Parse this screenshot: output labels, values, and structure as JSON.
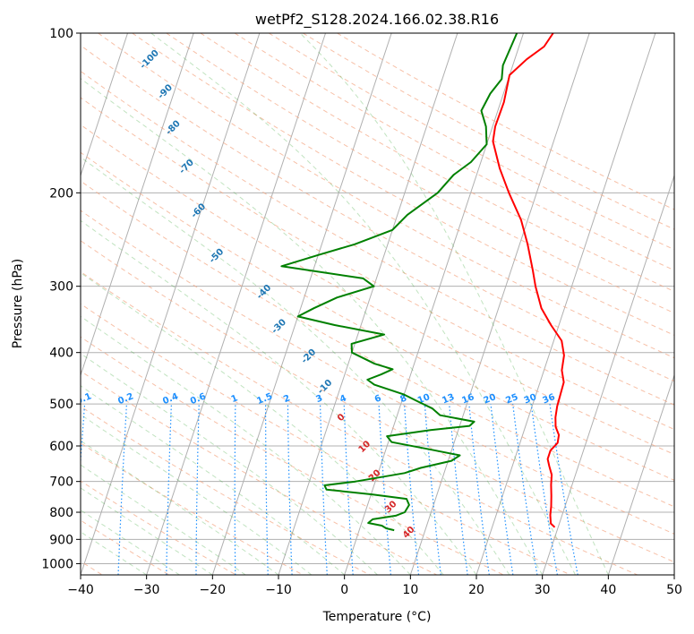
{
  "chart_data": {
    "type": "line",
    "subtype": "skew-T log-P diagram",
    "title": "wetPf2_S128.2024.166.02.38.R16",
    "xlabel": "Temperature (°C)",
    "ylabel": "Pressure (hPa)",
    "xlim": [
      -40,
      50
    ],
    "ylim": [
      1050,
      100
    ],
    "y_scale": "log",
    "x_ticks": [
      "−40",
      "−30",
      "−20",
      "−10",
      "0",
      "10",
      "20",
      "30",
      "40",
      "50"
    ],
    "y_ticks": [
      "100",
      "200",
      "300",
      "400",
      "500",
      "600",
      "700",
      "800",
      "900",
      "1000"
    ],
    "grid": true,
    "series": [
      {
        "color": "#ff0000",
        "values": [
          {
            "p": 854,
            "t": 29.5
          },
          {
            "p": 840,
            "t": 28.7
          },
          {
            "p": 810,
            "t": 28.2
          },
          {
            "p": 780,
            "t": 27.9
          },
          {
            "p": 745,
            "t": 27.4
          },
          {
            "p": 710,
            "t": 26.8
          },
          {
            "p": 680,
            "t": 26.4
          },
          {
            "p": 655,
            "t": 25.6
          },
          {
            "p": 635,
            "t": 25.0
          },
          {
            "p": 612,
            "t": 25.0
          },
          {
            "p": 592,
            "t": 25.7
          },
          {
            "p": 572,
            "t": 25.5
          },
          {
            "p": 552,
            "t": 24.6
          },
          {
            "p": 530,
            "t": 24.1
          },
          {
            "p": 505,
            "t": 23.8
          },
          {
            "p": 480,
            "t": 23.7
          },
          {
            "p": 455,
            "t": 23.6
          },
          {
            "p": 432,
            "t": 22.7
          },
          {
            "p": 405,
            "t": 22.3
          },
          {
            "p": 380,
            "t": 21.2
          },
          {
            "p": 355,
            "t": 18.8
          },
          {
            "p": 330,
            "t": 16.5
          },
          {
            "p": 300,
            "t": 14.5
          },
          {
            "p": 280,
            "t": 13.3
          },
          {
            "p": 250,
            "t": 11.2
          },
          {
            "p": 225,
            "t": 9.0
          },
          {
            "p": 200,
            "t": 5.8
          },
          {
            "p": 180,
            "t": 3.2
          },
          {
            "p": 160,
            "t": 0.8
          },
          {
            "p": 150,
            "t": 0.4
          },
          {
            "p": 135,
            "t": 0.5
          },
          {
            "p": 120,
            "t": 0.0
          },
          {
            "p": 112,
            "t": 1.8
          },
          {
            "p": 106,
            "t": 3.8
          },
          {
            "p": 100,
            "t": 4.5
          }
        ]
      },
      {
        "color": "#008000",
        "values": [
          {
            "p": 865,
            "t": 5.3
          },
          {
            "p": 858,
            "t": 4.0
          },
          {
            "p": 848,
            "t": 3.2
          },
          {
            "p": 838,
            "t": 1.0
          },
          {
            "p": 825,
            "t": 1.5
          },
          {
            "p": 812,
            "t": 4.8
          },
          {
            "p": 800,
            "t": 6.0
          },
          {
            "p": 775,
            "t": 6.3
          },
          {
            "p": 755,
            "t": 5.6
          },
          {
            "p": 740,
            "t": 0.0
          },
          {
            "p": 725,
            "t": -7.0
          },
          {
            "p": 712,
            "t": -7.5
          },
          {
            "p": 700,
            "t": -3.0
          },
          {
            "p": 675,
            "t": 4.0
          },
          {
            "p": 660,
            "t": 6.2
          },
          {
            "p": 640,
            "t": 10.5
          },
          {
            "p": 625,
            "t": 11.5
          },
          {
            "p": 610,
            "t": 7.0
          },
          {
            "p": 590,
            "t": 0.5
          },
          {
            "p": 575,
            "t": -0.5
          },
          {
            "p": 560,
            "t": 5.8
          },
          {
            "p": 550,
            "t": 11.5
          },
          {
            "p": 540,
            "t": 12.0
          },
          {
            "p": 525,
            "t": 6.5
          },
          {
            "p": 510,
            "t": 5.0
          },
          {
            "p": 495,
            "t": 2.5
          },
          {
            "p": 480,
            "t": 0.0
          },
          {
            "p": 460,
            "t": -5.0
          },
          {
            "p": 450,
            "t": -6.3
          },
          {
            "p": 440,
            "t": -4.5
          },
          {
            "p": 430,
            "t": -3.0
          },
          {
            "p": 420,
            "t": -6.0
          },
          {
            "p": 400,
            "t": -10.0
          },
          {
            "p": 385,
            "t": -10.5
          },
          {
            "p": 370,
            "t": -6.0
          },
          {
            "p": 355,
            "t": -14.0
          },
          {
            "p": 342,
            "t": -20.0
          },
          {
            "p": 330,
            "t": -18.0
          },
          {
            "p": 315,
            "t": -15.0
          },
          {
            "p": 300,
            "t": -10.0
          },
          {
            "p": 290,
            "t": -12.0
          },
          {
            "p": 275,
            "t": -25.0
          },
          {
            "p": 262,
            "t": -20.0
          },
          {
            "p": 250,
            "t": -15.0
          },
          {
            "p": 235,
            "t": -10.0
          },
          {
            "p": 220,
            "t": -8.5
          },
          {
            "p": 200,
            "t": -5.0
          },
          {
            "p": 185,
            "t": -3.5
          },
          {
            "p": 175,
            "t": -1.5
          },
          {
            "p": 162,
            "t": 0.0
          },
          {
            "p": 150,
            "t": -1.0
          },
          {
            "p": 140,
            "t": -2.5
          },
          {
            "p": 130,
            "t": -2.0
          },
          {
            "p": 122,
            "t": -1.0
          },
          {
            "p": 115,
            "t": -1.5
          },
          {
            "p": 100,
            "t": -1.0
          }
        ]
      }
    ],
    "annotations": {
      "dry_adiabat_labels": [
        {
          "text": "-100",
          "p": 113,
          "t": -55
        },
        {
          "text": "-90",
          "p": 130,
          "t": -51
        },
        {
          "text": "-80",
          "p": 152,
          "t": -48
        },
        {
          "text": "-70",
          "p": 180,
          "t": -44
        },
        {
          "text": "-60",
          "p": 218,
          "t": -40
        },
        {
          "text": "-50",
          "p": 265,
          "t": -35
        },
        {
          "text": "-40",
          "p": 310,
          "t": -26
        },
        {
          "text": "-30",
          "p": 360,
          "t": -22
        },
        {
          "text": "-20",
          "p": 410,
          "t": -16
        },
        {
          "text": "-10",
          "p": 468,
          "t": -12
        },
        {
          "text": "0",
          "p": 535,
          "t": -8
        },
        {
          "text": "10",
          "p": 607,
          "t": -3
        },
        {
          "text": "20",
          "p": 688,
          "t": 0
        },
        {
          "text": "30",
          "p": 788,
          "t": 4
        },
        {
          "text": "40",
          "p": 880,
          "t": 8
        }
      ],
      "mixing_ratio_labels": [
        "0.1",
        "0.2",
        "0.4",
        "0.6",
        "1",
        "1.5",
        "2",
        "3",
        "4",
        "6",
        "8",
        "10",
        "13",
        "16",
        "20",
        "25",
        "30",
        "36"
      ]
    }
  }
}
